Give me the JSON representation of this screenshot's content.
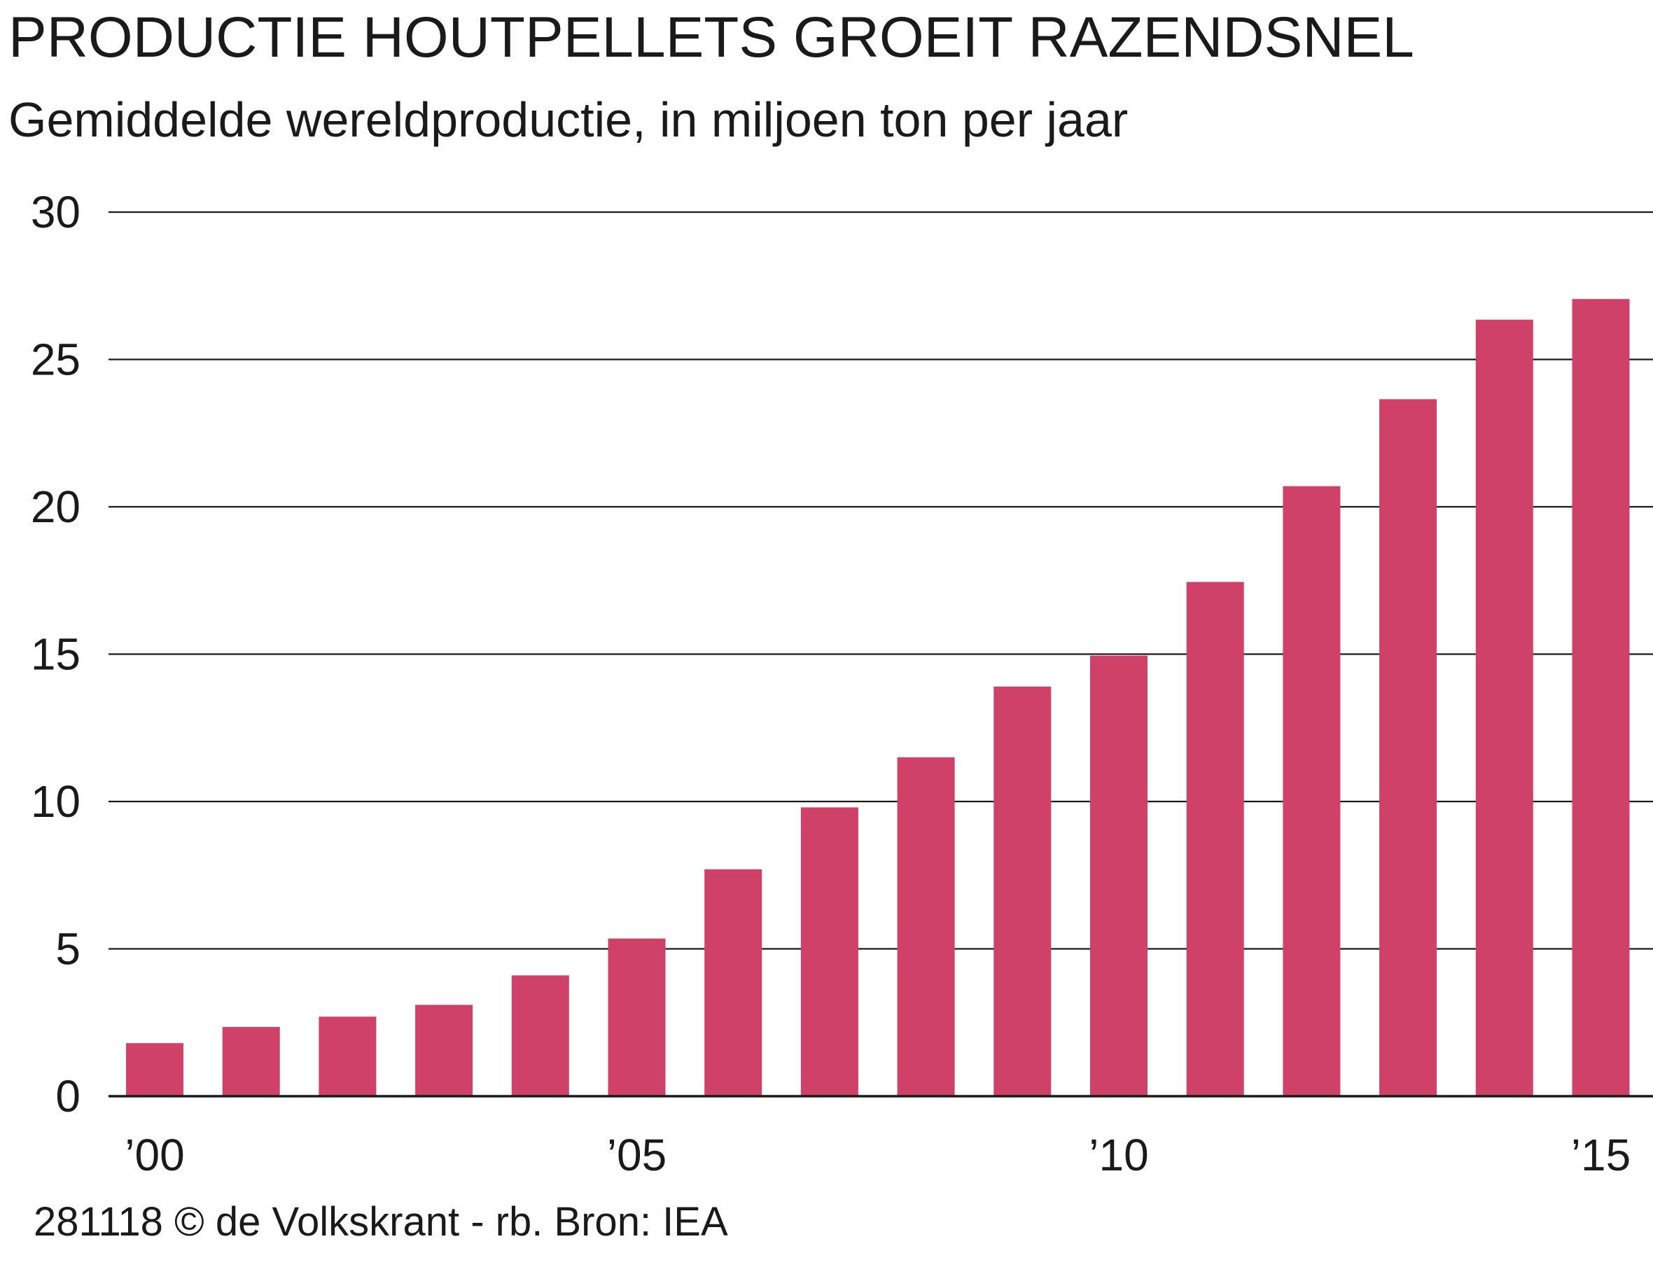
{
  "header": {
    "title": "PRODUCTIE HOUTPELLETS GROEIT RAZENDSNEL",
    "subtitle": "Gemiddelde wereldproductie, in miljoen ton per jaar"
  },
  "footer": {
    "credit": "281118 © de Volkskrant - rb. Bron: IEA"
  },
  "colors": {
    "bar": "#cf4169",
    "gridline": "#1a1a1a",
    "text": "#1a1a1a"
  },
  "chart_data": {
    "type": "bar",
    "categories": [
      "2000",
      "2001",
      "2002",
      "2003",
      "2004",
      "2005",
      "2006",
      "2007",
      "2008",
      "2009",
      "2010",
      "2011",
      "2012",
      "2013",
      "2014",
      "2015"
    ],
    "values": [
      1.8,
      2.35,
      2.7,
      3.1,
      4.1,
      5.35,
      7.7,
      9.8,
      11.5,
      13.9,
      14.95,
      17.45,
      20.7,
      23.65,
      26.35,
      27.05
    ],
    "x_tick_labels": [
      {
        "category_index": 0,
        "label": "’00"
      },
      {
        "category_index": 5,
        "label": "’05"
      },
      {
        "category_index": 10,
        "label": "’10"
      },
      {
        "category_index": 15,
        "label": "’15"
      }
    ],
    "y_ticks": [
      0,
      5,
      10,
      15,
      20,
      25,
      30
    ],
    "ylim": [
      0,
      30
    ],
    "grid": true,
    "legend": false,
    "title": "PRODUCTIE HOUTPELLETS GROEIT RAZENDSNEL",
    "subtitle": "Gemiddelde wereldproductie, in miljoen ton per jaar",
    "xlabel": "",
    "ylabel": ""
  }
}
